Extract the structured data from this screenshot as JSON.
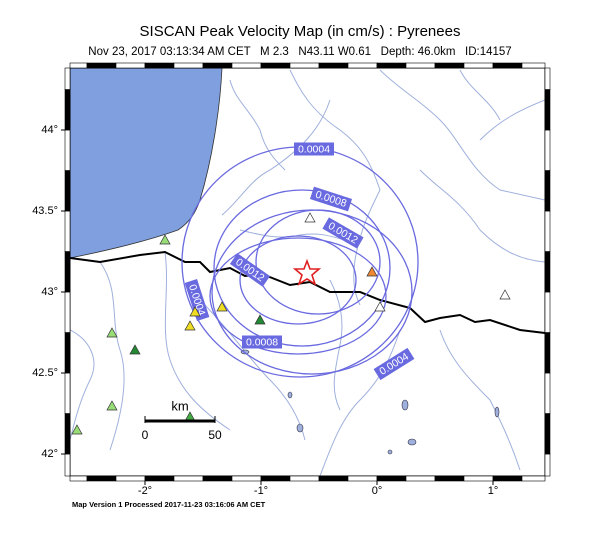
{
  "map": {
    "title": "SISCAN Peak Velocity Map (in cm/s) : Pyrenees",
    "subtitle": "Nov 23, 2017 03:13:34 AM CET   M 2.3   N43.11 W0.61   Depth: 46.0km   ID:14157",
    "xticks": [
      {
        "value": -2,
        "label": "-2°"
      },
      {
        "value": -1,
        "label": "-1°"
      },
      {
        "value": 0,
        "label": "0°"
      },
      {
        "value": 1,
        "label": "1°"
      }
    ],
    "yticks": [
      {
        "value": 44,
        "label": "44°"
      },
      {
        "value": 43.5,
        "label": "43.5°"
      },
      {
        "value": 43,
        "label": "43°"
      },
      {
        "value": 42.5,
        "label": "42.5°"
      },
      {
        "value": 42,
        "label": "42°"
      }
    ],
    "contours": [
      0.0004,
      0.0008,
      0.0012
    ],
    "scale_bar": {
      "unit": "km",
      "ticks": [
        0,
        50
      ]
    },
    "footer": "Map Version 1 Processed 2017-11-23 03:16:06 AM CET"
  }
}
